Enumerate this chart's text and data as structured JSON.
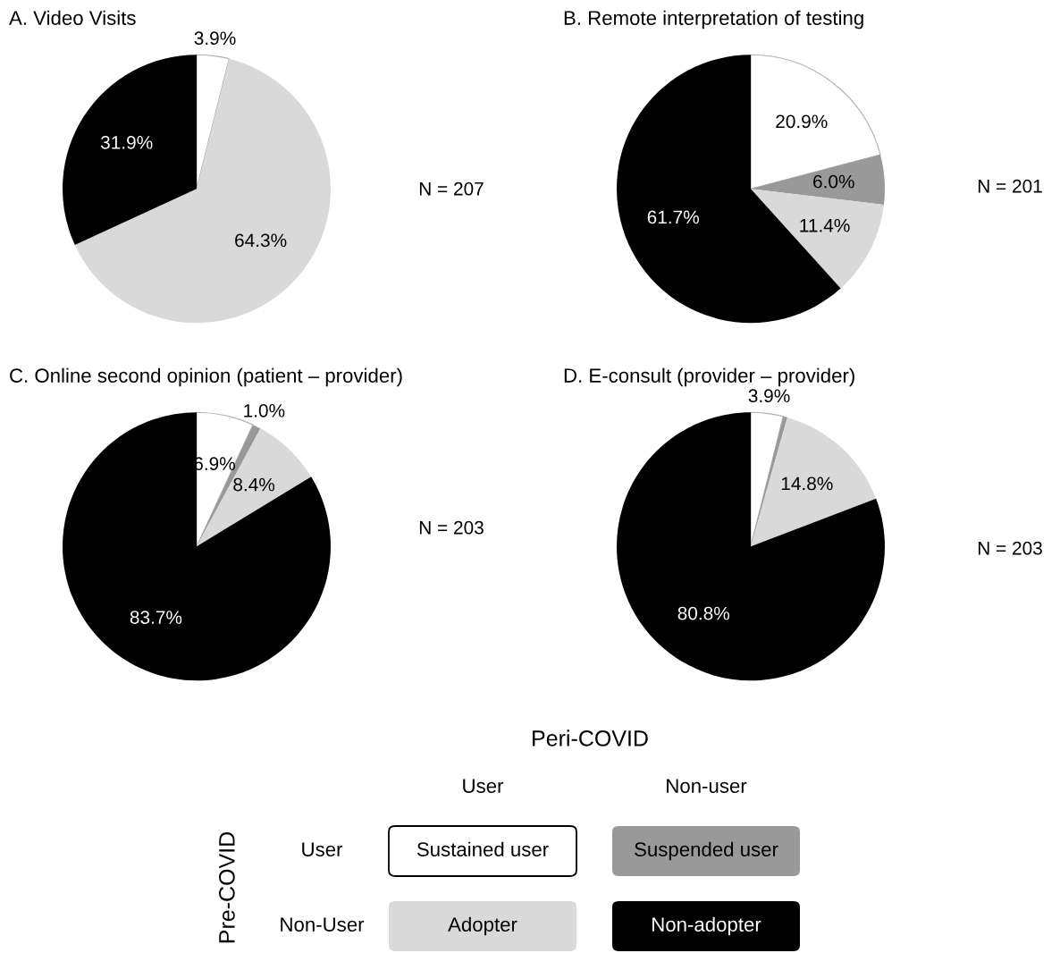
{
  "chart_data": [
    {
      "type": "pie",
      "title": "A. Video Visits",
      "categories": [
        null,
        null,
        null
      ],
      "values": [
        3.9,
        64.3,
        31.9
      ],
      "colors": [
        "#ffffff",
        "#d9d9d9",
        "#000000"
      ],
      "value_labels": [
        "3.9%",
        "64.3%",
        "31.9%"
      ],
      "annotations": [
        "N = 207"
      ]
    },
    {
      "type": "pie",
      "title": "B. Remote interpretation of testing",
      "categories": [
        null,
        null,
        null,
        null
      ],
      "values": [
        20.9,
        6.0,
        11.4,
        61.7
      ],
      "colors": [
        "#ffffff",
        "#999999",
        "#d9d9d9",
        "#000000"
      ],
      "value_labels": [
        "20.9%",
        "6.0%",
        "11.4%",
        "61.7%"
      ],
      "annotations": [
        "N = 201"
      ]
    },
    {
      "type": "pie",
      "title": "C. Online second opinion (patient – provider)",
      "categories": [
        null,
        null,
        null,
        null
      ],
      "values": [
        6.9,
        1.0,
        8.4,
        83.7
      ],
      "colors": [
        "#ffffff",
        "#999999",
        "#d9d9d9",
        "#000000"
      ],
      "value_labels": [
        "6.9%",
        "1.0%",
        "8.4%",
        "83.7%"
      ],
      "annotations": [
        "N = 203"
      ]
    },
    {
      "type": "pie",
      "title": "D. E-consult (provider – provider)",
      "categories": [
        null,
        null,
        null,
        null
      ],
      "values": [
        3.9,
        0.5,
        14.8,
        80.8
      ],
      "colors": [
        "#ffffff",
        "#999999",
        "#d9d9d9",
        "#000000"
      ],
      "value_labels": [
        "3.9%",
        null,
        "14.8%",
        "80.8%"
      ],
      "annotations": [
        "N = 203"
      ]
    },
    {
      "type": "other",
      "title": "Peri-COVID",
      "ylabel": "Pre-COVID",
      "categories": [
        "User",
        "Non-user"
      ],
      "y_categories": [
        "User",
        "Non-User"
      ],
      "cell_labels": [
        [
          "Sustained user",
          "Suspended user"
        ],
        [
          "Adopter",
          "Non-adopter"
        ]
      ],
      "colors": [
        [
          "#ffffff",
          "#999999"
        ],
        [
          "#d9d9d9",
          "#000000"
        ]
      ]
    }
  ]
}
